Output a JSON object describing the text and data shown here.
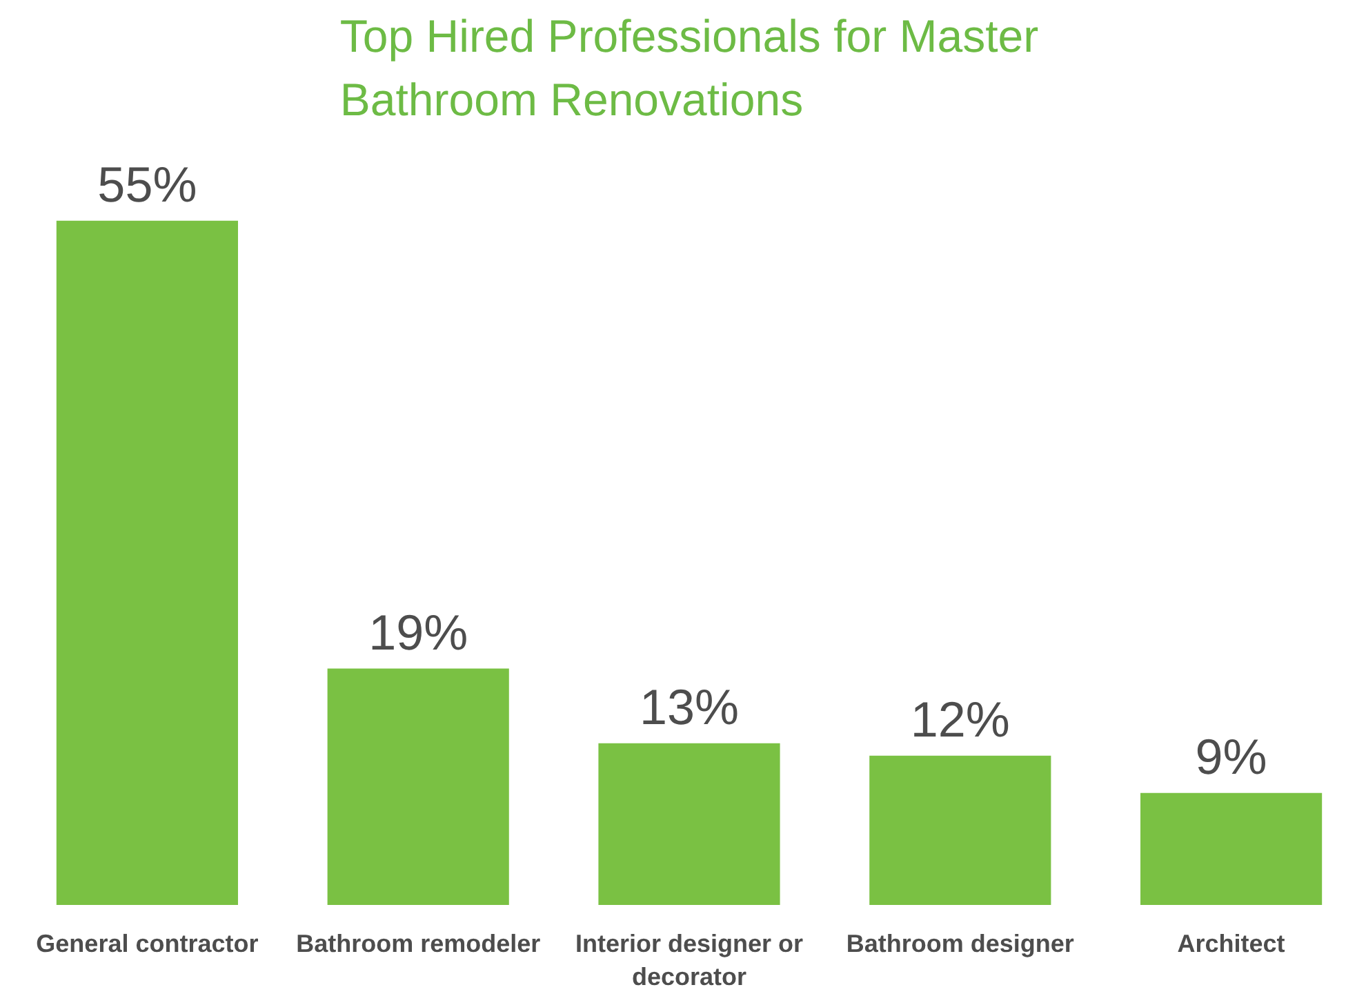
{
  "chart_data": {
    "type": "bar",
    "title": "Top Hired Professionals for Master Bathroom Renovations",
    "categories": [
      "General contractor",
      "Bathroom remodeler",
      "Interior designer or decorator",
      "Bathroom designer",
      "Architect"
    ],
    "values": [
      55,
      19,
      13,
      12,
      9
    ],
    "value_labels": [
      "55%",
      "19%",
      "13%",
      "12%",
      "9%"
    ],
    "color": "#7ac143",
    "grid": false
  }
}
